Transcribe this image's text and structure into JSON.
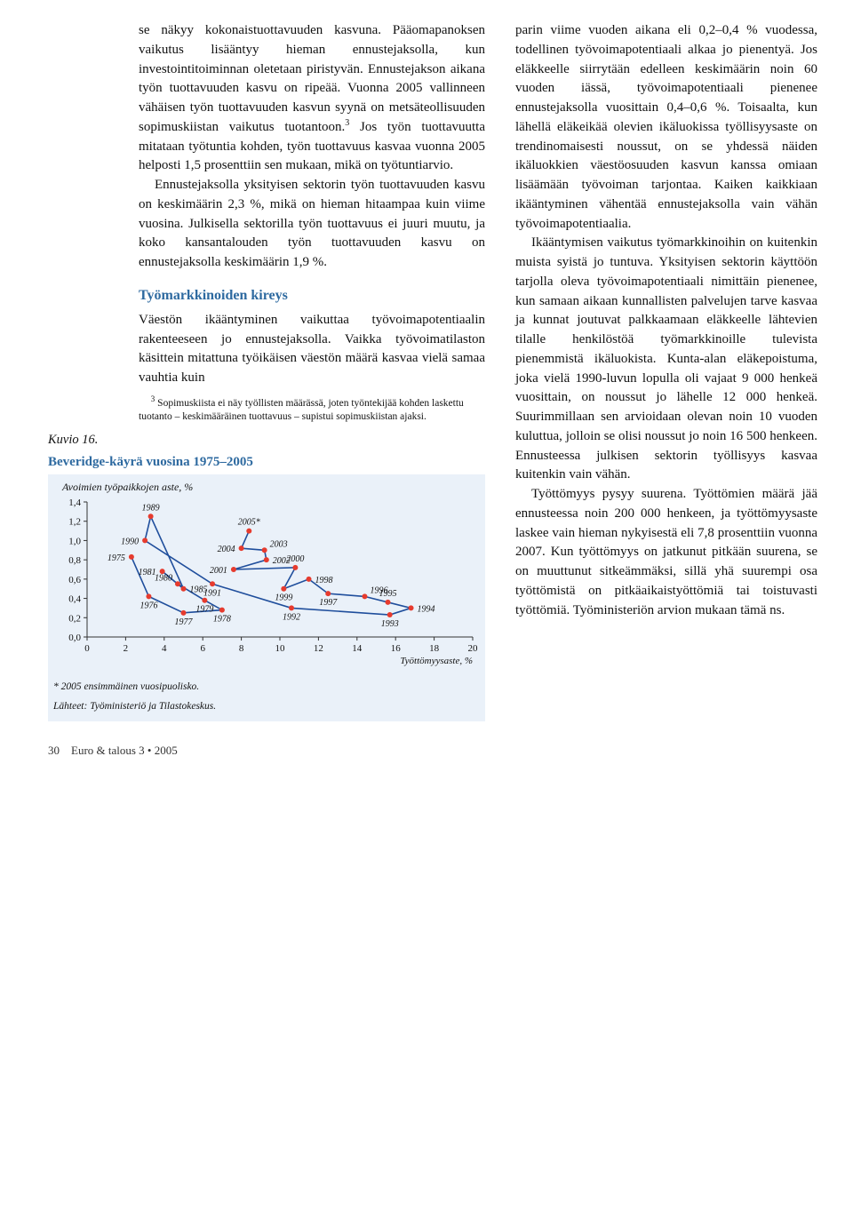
{
  "left": {
    "p1": "se näkyy kokonaistuottavuuden kasvuna. Pääomapanoksen vaikutus lisääntyy hieman ennustejaksolla, kun investointitoiminnan oletetaan piristyvän. Ennustejakson aikana työn tuottavuuden kasvu on ripeää. Vuonna 2005 vallinneen vähäisen työn tuottavuuden kasvun syynä on metsäteollisuuden sopimuskiistan vaikutus tuotantoon.",
    "p1b": " Jos työn tuottavuutta mitataan työtuntia kohden, työn tuottavuus kasvaa vuonna 2005 helposti 1,5 prosenttiin sen mukaan, mikä on työtuntiarvio.",
    "p2": "Ennustejaksolla yksityisen sektorin työn tuottavuuden kasvu on keskimäärin 2,3 %, mikä on hieman hitaampaa kuin viime vuosina. Julkisella sektorilla työn tuottavuus ei juuri muutu, ja koko kansantalouden työn tuottavuuden kasvu on ennustejaksolla keskimäärin 1,9 %.",
    "subhead": "Työmarkkinoiden kireys",
    "p3": "Väestön ikääntyminen vaikuttaa työvoimapotentiaalin rakenteeseen jo ennustejaksolla. Vaikka työvoimatilaston käsittein mitattuna työikäisen väestön määrä kasvaa vielä samaa vauhtia kuin",
    "footnote_label": "3",
    "footnote": " Sopimuskiista ei näy työllisten määrässä, joten työntekijää kohden laskettu tuotanto – keskimääräinen tuottavuus – supistui sopimuskiistan ajaksi.",
    "kuvio_label": "Kuvio 16."
  },
  "right": {
    "p1": "parin viime vuoden aikana eli 0,2–0,4 % vuodessa, todellinen työvoimapotentiaali alkaa jo pienentyä. Jos eläkkeelle siirrytään edelleen keskimäärin noin 60 vuoden iässä, työvoimapotentiaali pienenee ennustejaksolla vuosittain 0,4–0,6 %. Toisaalta, kun lähellä eläkeikää olevien ikäluokissa työllisyysaste on trendinomaisesti noussut, on se yhdessä näiden ikäluokkien väestöosuuden kasvun kanssa omiaan lisäämään työvoiman tarjontaa. Kaiken kaikkiaan ikääntyminen vähentää ennustejaksolla vain vähän työvoimapotentiaalia.",
    "p2": "Ikääntymisen vaikutus työmarkkinoihin on kuitenkin muista syistä jo tuntuva. Yksityisen sektorin käyttöön tarjolla oleva työvoimapotentiaali nimittäin pienenee, kun samaan aikaan kunnallisten palvelujen tarve kasvaa ja kunnat joutuvat palkkaamaan eläkkeelle lähtevien tilalle henkilöstöä työmarkkinoille tulevista pienemmistä ikäluokista. Kunta-alan eläkepoistuma, joka vielä 1990-luvun lopulla oli vajaat 9 000 henkeä vuosittain, on noussut jo lähelle 12 000 henkeä. Suurimmillaan sen arvioidaan olevan noin 10 vuoden kuluttua, jolloin se olisi noussut jo noin 16 500 henkeen. Ennusteessa julkisen sektorin työllisyys kasvaa kuitenkin vain vähän.",
    "p3": "Työttömyys pysyy suurena. Työttömien määrä jää ennusteessa noin 200 000 henkeen, ja työttömyysaste laskee vain hieman nykyisestä eli 7,8 prosenttiin vuonna 2007. Kun työttömyys on jatkunut pitkään suurena, se on muuttunut sitkeämmäksi, sillä yhä suurempi osa työttömistä on pitkäaikaistyöttömiä tai toistuvasti työttömiä. Työministeriön arvion mukaan tämä ns."
  },
  "figure": {
    "title": "Beveridge-käyrä vuosina 1975–2005",
    "yaxis_label": "Avoimien työpaikkojen aste, %",
    "xaxis_label": "Työttömyysaste, %",
    "note1": "* 2005 ensimmäinen vuosipuolisko.",
    "note2": "Lähteet: Työministeriö ja Tilastokeskus.",
    "type": "scatter-line",
    "background_color": "#eaf1f9",
    "line_color": "#1f4e9c",
    "marker_color": "#e63b2e",
    "marker_radius": 3,
    "line_width": 1.6,
    "xlim": [
      0,
      20
    ],
    "ylim": [
      0.0,
      1.4
    ],
    "xtick_step": 2,
    "ytick_step": 0.2,
    "xtick_labels": [
      "0",
      "2",
      "4",
      "6",
      "8",
      "10",
      "12",
      "14",
      "16",
      "18",
      "20"
    ],
    "ytick_labels": [
      "0,0",
      "0,2",
      "0,4",
      "0,6",
      "0,8",
      "1,0",
      "1,2",
      "1,4"
    ],
    "label_fontsize": 10,
    "tick_fontsize": 11,
    "points": [
      {
        "year": "1975",
        "x": 2.3,
        "y": 0.83
      },
      {
        "year": "1976",
        "x": 3.2,
        "y": 0.42
      },
      {
        "year": "1977",
        "x": 5.0,
        "y": 0.25
      },
      {
        "year": "1978",
        "x": 7.0,
        "y": 0.28
      },
      {
        "year": "1979",
        "x": 6.1,
        "y": 0.38
      },
      {
        "year": "1980",
        "x": 4.7,
        "y": 0.55
      },
      {
        "year": "1981",
        "x": 3.9,
        "y": 0.68
      },
      {
        "year": "1985",
        "x": 5.0,
        "y": 0.5
      },
      {
        "year": "1989",
        "x": 3.3,
        "y": 1.25
      },
      {
        "year": "1990",
        "x": 3.0,
        "y": 1.0
      },
      {
        "year": "1991",
        "x": 6.5,
        "y": 0.55
      },
      {
        "year": "1992",
        "x": 10.6,
        "y": 0.3
      },
      {
        "year": "1993",
        "x": 15.7,
        "y": 0.23
      },
      {
        "year": "1994",
        "x": 16.8,
        "y": 0.3
      },
      {
        "year": "1995",
        "x": 15.6,
        "y": 0.36
      },
      {
        "year": "1996",
        "x": 14.4,
        "y": 0.42
      },
      {
        "year": "1997",
        "x": 12.5,
        "y": 0.45
      },
      {
        "year": "1998",
        "x": 11.5,
        "y": 0.6
      },
      {
        "year": "1999",
        "x": 10.2,
        "y": 0.5
      },
      {
        "year": "2000",
        "x": 10.8,
        "y": 0.72
      },
      {
        "year": "2001",
        "x": 7.6,
        "y": 0.7
      },
      {
        "year": "2002",
        "x": 9.3,
        "y": 0.8
      },
      {
        "year": "2003",
        "x": 9.2,
        "y": 0.9
      },
      {
        "year": "2004",
        "x": 8.0,
        "y": 0.92
      },
      {
        "year": "2005*",
        "x": 8.4,
        "y": 1.1
      }
    ],
    "segments": [
      [
        "1975",
        "1976",
        "1977",
        "1978",
        "1979",
        "1980",
        "1981",
        "1985",
        "1989",
        "1990",
        "1991",
        "1992",
        "1993",
        "1994",
        "1995",
        "1996",
        "1997",
        "1998",
        "1999",
        "2000",
        "2001",
        "2002",
        "2003",
        "2004",
        "2005*"
      ]
    ],
    "label_anchors": {
      "1975": "w",
      "1976": "s",
      "1977": "s",
      "1978": "s",
      "1979": "s",
      "1980": "nw",
      "1981": "w",
      "1985": "e",
      "1989": "n",
      "1990": "w",
      "1991": "s",
      "1992": "s",
      "1993": "s",
      "1994": "e",
      "1995": "n",
      "1996": "ne",
      "1997": "s",
      "1998": "e",
      "1999": "s",
      "2000": "n",
      "2001": "w",
      "2002": "e",
      "2003": "ne",
      "2004": "w",
      "2005*": "n"
    }
  },
  "footer": {
    "page_number": "30",
    "pub": "Euro & talous 3 • 2005"
  }
}
